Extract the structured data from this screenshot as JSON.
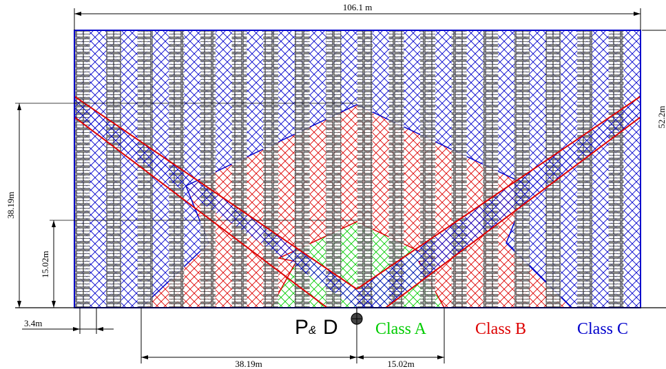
{
  "dimensions": {
    "overall_width": "106.1 m",
    "overall_height": "52.2m",
    "class_b_depth": "38.19m",
    "class_a_depth": "15.02m",
    "aisle_width": "3.4m",
    "class_b_half_width": "38.19m",
    "class_a_half_width": "15.02m"
  },
  "pd_label": {
    "p": "P",
    "amp": "&",
    "d": "D"
  },
  "legend": [
    {
      "label": "Class A",
      "color": "#00cc00"
    },
    {
      "label": "Class B",
      "color": "#dd0000"
    },
    {
      "label": "Class C",
      "color": "#0000cc"
    }
  ]
}
